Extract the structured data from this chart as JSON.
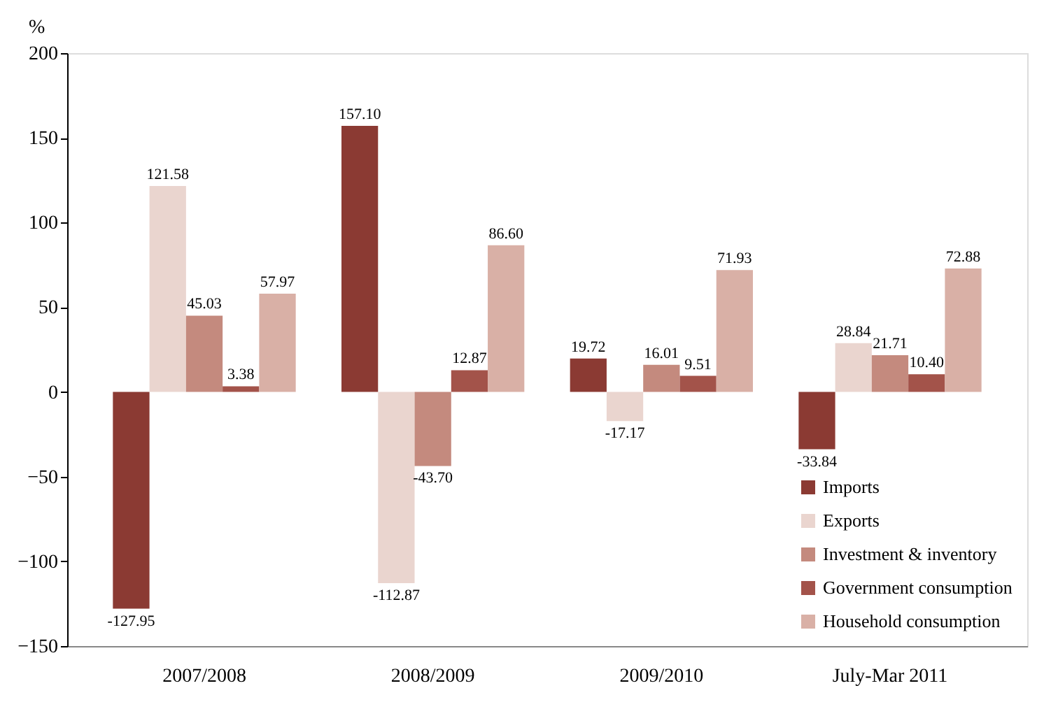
{
  "chart_data": {
    "type": "bar",
    "ylabel": "%",
    "categories": [
      "2007/2008",
      "2008/2009",
      "2009/2010",
      "July-Mar 2011"
    ],
    "series": [
      {
        "name": "Imports",
        "color": "#8b3a33",
        "values": [
          -127.95,
          157.1,
          19.72,
          -33.84
        ],
        "value_labels": [
          "-127.95",
          "157.10",
          "19.72",
          "-33.84"
        ]
      },
      {
        "name": "Exports",
        "color": "#ead5cf",
        "values": [
          121.58,
          -112.87,
          -17.17,
          28.84
        ],
        "value_labels": [
          "121.58",
          "-112.87",
          "-17.17",
          "28.84"
        ]
      },
      {
        "name": "Investment & inventory",
        "color": "#c48a7e",
        "values": [
          45.03,
          -43.7,
          16.01,
          21.71
        ],
        "value_labels": [
          "45.03",
          "-43.70",
          "16.01",
          "21.71"
        ]
      },
      {
        "name": "Government consumption",
        "color": "#a3534a",
        "values": [
          3.38,
          12.87,
          9.51,
          10.4
        ],
        "value_labels": [
          "3.38",
          "12.87",
          "9.51",
          "10.40"
        ]
      },
      {
        "name": "Household consumption",
        "color": "#d9b0a6",
        "values": [
          57.97,
          86.6,
          71.93,
          72.88
        ],
        "value_labels": [
          "57.97",
          "86.60",
          "71.93",
          "72.88"
        ]
      }
    ],
    "ylim": [
      -150,
      200
    ],
    "yticks": [
      -150,
      -100,
      -50,
      0,
      50,
      100,
      150,
      200
    ],
    "grid": false,
    "legend": "bottom right"
  }
}
